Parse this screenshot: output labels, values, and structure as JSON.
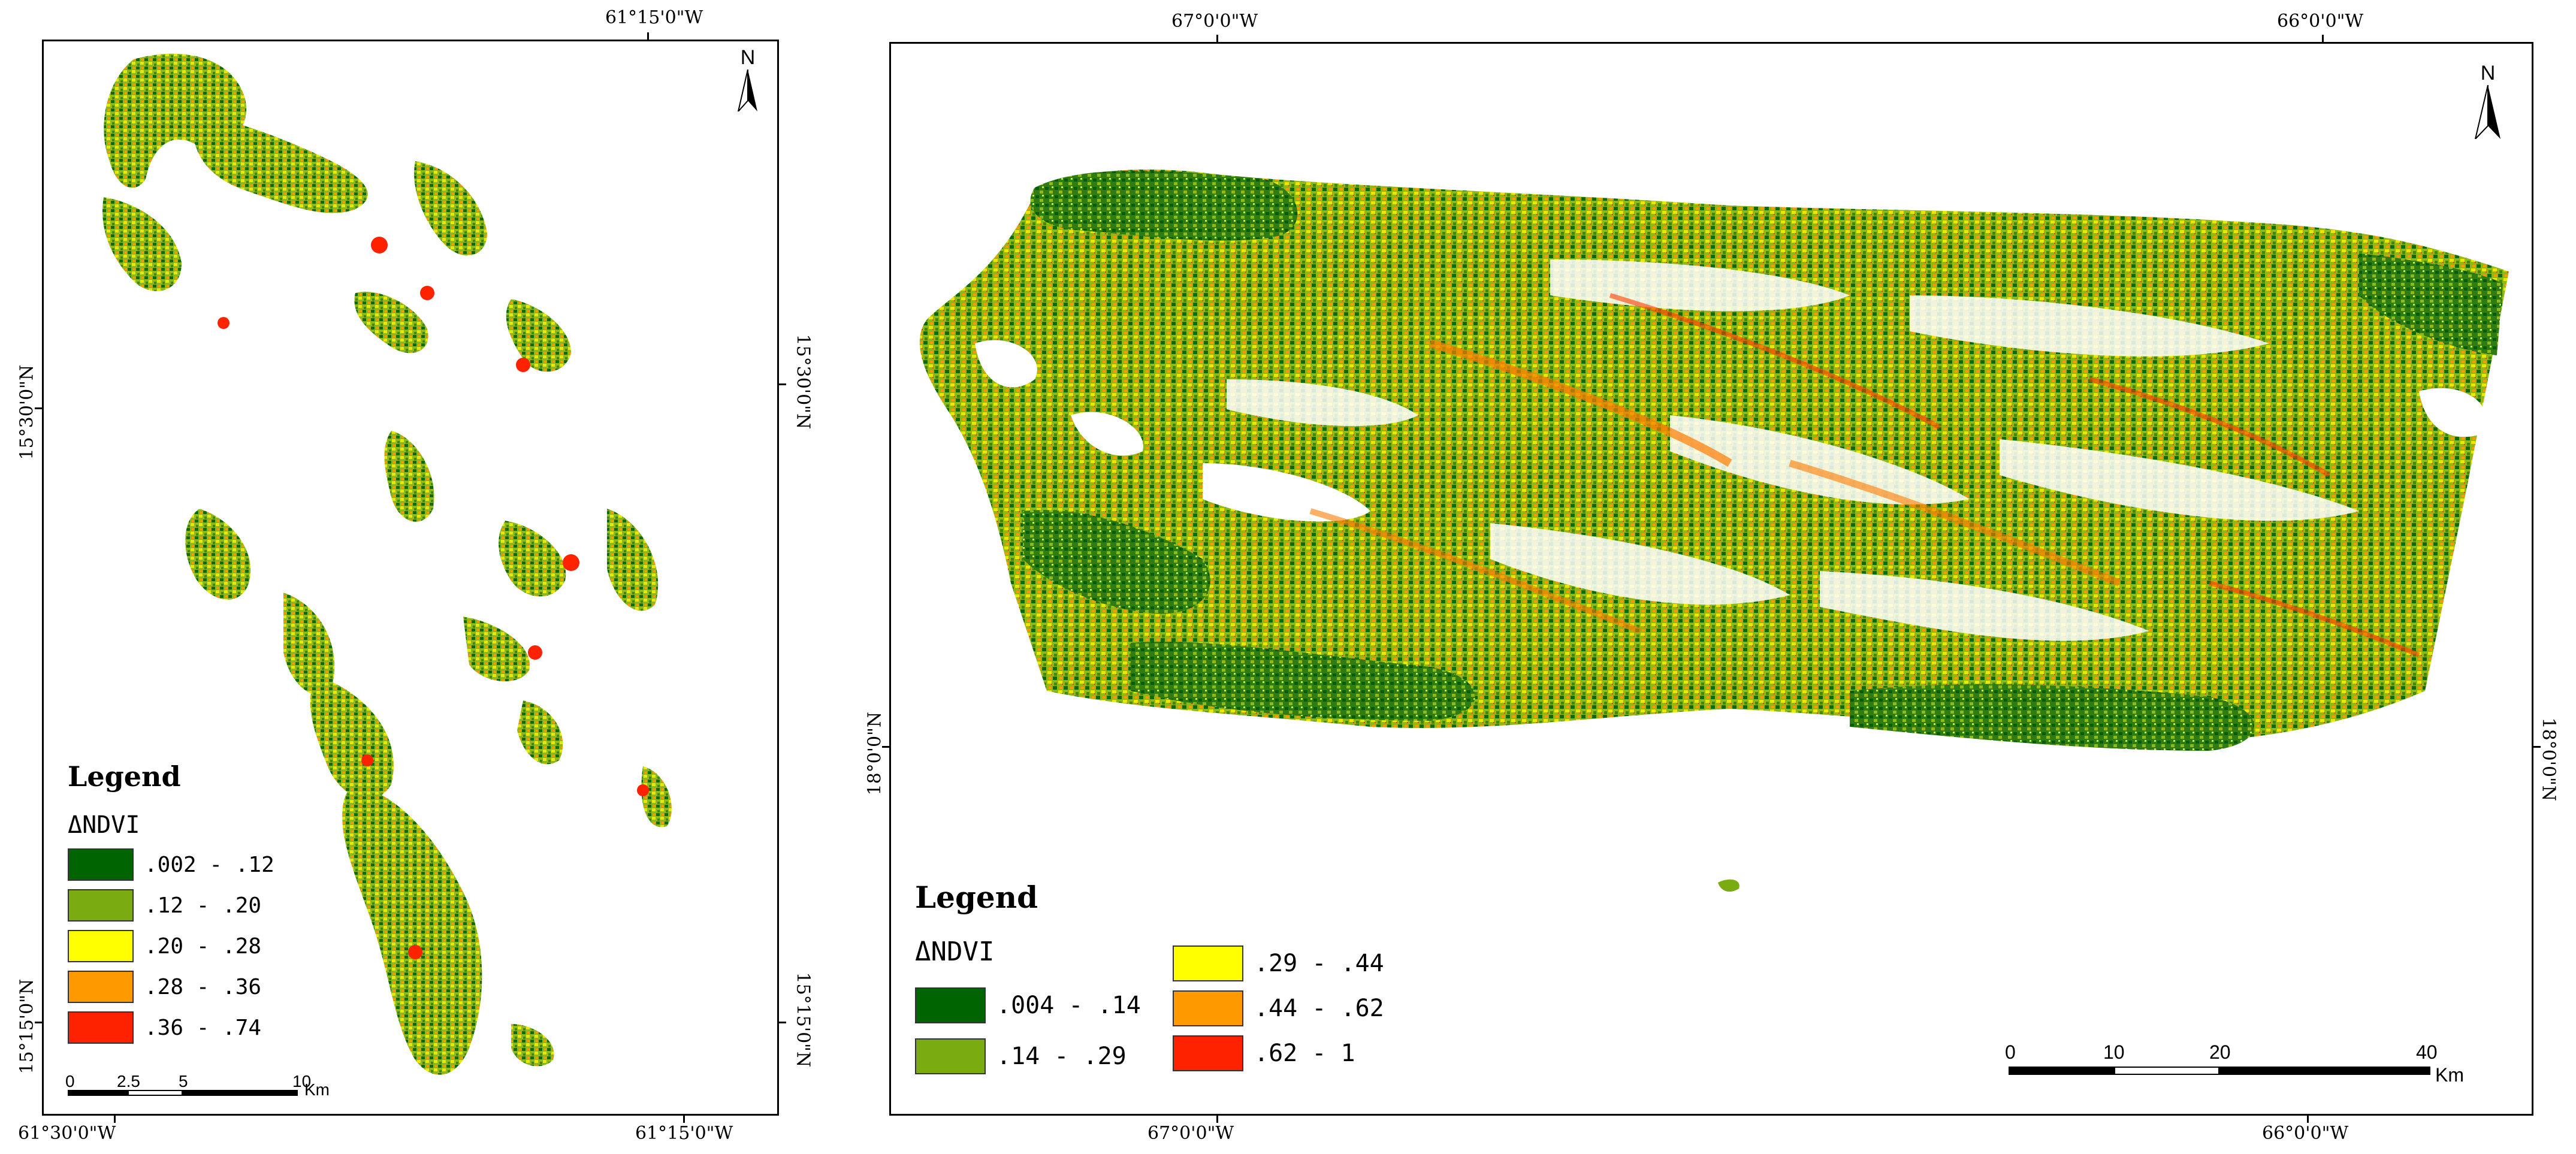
{
  "left_map": {
    "coords": {
      "top_lon": "61°15'0\"W",
      "bottom_lon_left": "61°30'0\"W",
      "bottom_lon_right": "61°15'0\"W",
      "left_lat_upper": "15°30'0\"N",
      "left_lat_lower": "15°15'0\"N",
      "right_lat_upper": "15°30'0\"N",
      "right_lat_lower": "15°15'0\"N"
    },
    "north": "N",
    "legend": {
      "title": "Legend",
      "index": "ΔNDVI",
      "classes": [
        {
          "label": ".002 - .12",
          "color": "#006400"
        },
        {
          "label": ".12 - .20",
          "color": "#7aab10"
        },
        {
          "label": ".20 - .28",
          "color": "#ffff00"
        },
        {
          "label": ".28 - .36",
          "color": "#ff9900"
        },
        {
          "label": ".36 - .74",
          "color": "#ff2200"
        }
      ]
    },
    "scale": {
      "ticks": [
        "0",
        "2.5",
        "5",
        "10"
      ],
      "unit": "Km"
    }
  },
  "right_map": {
    "coords": {
      "top_lon_left": "67°0'0\"W",
      "top_lon_right": "66°0'0\"W",
      "bottom_lon_left": "67°0'0\"W",
      "bottom_lon_right": "66°0'0\"W",
      "left_lat": "18°0'0\"N",
      "right_lat": "18°0'0\"N"
    },
    "north": "N",
    "legend": {
      "title": "Legend",
      "index": "ΔNDVI",
      "classes": [
        {
          "label": ".004 - .14",
          "color": "#006400"
        },
        {
          "label": ".14 - .29",
          "color": "#7aab10"
        },
        {
          "label": ".29 - .44",
          "color": "#ffff00"
        },
        {
          "label": ".44 - .62",
          "color": "#ff9900"
        },
        {
          "label": ".62 - 1",
          "color": "#ff2200"
        }
      ]
    },
    "scale": {
      "ticks": [
        "0",
        "10",
        "20",
        "40"
      ],
      "unit": "Km"
    }
  }
}
